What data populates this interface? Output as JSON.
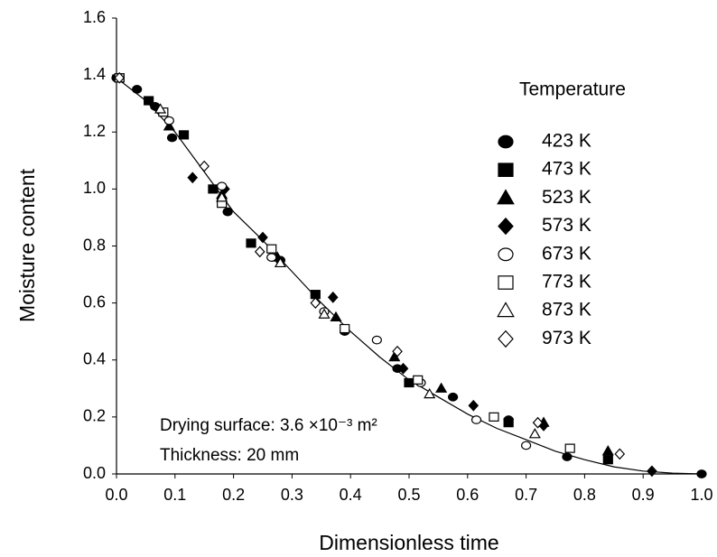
{
  "chart_data": {
    "type": "scatter",
    "x_label": "Dimensionless time",
    "y_label": "Moisture content",
    "legend_title": "Temperature",
    "legend_position": "upper right",
    "annotations": [
      "Drying surface: 3.6 ×10⁻³ m²",
      "Thickness: 20 mm"
    ],
    "xlim": [
      0,
      1
    ],
    "ylim": [
      0,
      1.6
    ],
    "xticks": [
      {
        "value": 0,
        "label": "0.0"
      },
      {
        "value": 0.1,
        "label": "0.1"
      },
      {
        "value": 0.2,
        "label": "0.2"
      },
      {
        "value": 0.3,
        "label": "0.3"
      },
      {
        "value": 0.4,
        "label": "0.4"
      },
      {
        "value": 0.5,
        "label": "0.5"
      },
      {
        "value": 0.6,
        "label": "0.6"
      },
      {
        "value": 0.7,
        "label": "0.7"
      },
      {
        "value": 0.8,
        "label": "0.8"
      },
      {
        "value": 0.9,
        "label": "0.9"
      },
      {
        "value": 1,
        "label": "1.0"
      }
    ],
    "yticks": [
      {
        "value": 0,
        "label": "0.0"
      },
      {
        "value": 0.2,
        "label": "0.2"
      },
      {
        "value": 0.4,
        "label": "0.4"
      },
      {
        "value": 0.6,
        "label": "0.6"
      },
      {
        "value": 0.8,
        "label": "0.8"
      },
      {
        "value": 1,
        "label": "1.0"
      },
      {
        "value": 1.2,
        "label": "1.2"
      },
      {
        "value": 1.4,
        "label": "1.4"
      },
      {
        "value": 1.6,
        "label": "1.6"
      }
    ],
    "curve": {
      "color": "#000000",
      "x": [
        0,
        0.05,
        0.1,
        0.15,
        0.2,
        0.25,
        0.3,
        0.35,
        0.4,
        0.45,
        0.5,
        0.55,
        0.6,
        0.65,
        0.7,
        0.75,
        0.8,
        0.85,
        0.9,
        0.95,
        1
      ],
      "y": [
        1.39,
        1.31,
        1.2,
        1.06,
        0.92,
        0.82,
        0.71,
        0.6,
        0.5,
        0.41,
        0.33,
        0.27,
        0.21,
        0.16,
        0.12,
        0.08,
        0.05,
        0.025,
        0.01,
        0.003,
        0
      ]
    },
    "series": [
      {
        "name": "423 K",
        "marker": "circle",
        "filled": true,
        "color": "#000000",
        "x": [
          0,
          0.035,
          0.066,
          0.095,
          0.19,
          0.28,
          0.39,
          0.48,
          0.575,
          0.67,
          0.77,
          1
        ],
        "values": [
          1.39,
          1.35,
          1.29,
          1.18,
          0.92,
          0.75,
          0.5,
          0.37,
          0.27,
          0.19,
          0.06,
          0
        ]
      },
      {
        "name": "473 K",
        "marker": "square",
        "filled": true,
        "color": "#000000",
        "x": [
          0.005,
          0.055,
          0.115,
          0.165,
          0.23,
          0.34,
          0.5,
          0.67,
          0.84
        ],
        "values": [
          1.39,
          1.31,
          1.19,
          1.0,
          0.81,
          0.63,
          0.32,
          0.18,
          0.05
        ]
      },
      {
        "name": "523 K",
        "marker": "triangle",
        "filled": true,
        "color": "#000000",
        "x": [
          0.09,
          0.18,
          0.275,
          0.375,
          0.475,
          0.555,
          0.73,
          0.84
        ],
        "values": [
          1.22,
          0.98,
          0.76,
          0.55,
          0.41,
          0.3,
          0.18,
          0.08
        ]
      },
      {
        "name": "573 K",
        "marker": "diamond",
        "filled": true,
        "color": "#000000",
        "x": [
          0.13,
          0.185,
          0.25,
          0.37,
          0.49,
          0.61,
          0.73,
          0.915
        ],
        "values": [
          1.04,
          1.0,
          0.83,
          0.62,
          0.37,
          0.24,
          0.17,
          0.01
        ]
      },
      {
        "name": "673 K",
        "marker": "circle",
        "filled": false,
        "color": "#000000",
        "x": [
          0.09,
          0.18,
          0.265,
          0.355,
          0.445,
          0.52,
          0.615,
          0.7
        ],
        "values": [
          1.24,
          1.01,
          0.76,
          0.57,
          0.47,
          0.32,
          0.19,
          0.1
        ]
      },
      {
        "name": "773 K",
        "marker": "square",
        "filled": false,
        "color": "#000000",
        "x": [
          0.005,
          0.08,
          0.18,
          0.265,
          0.39,
          0.515,
          0.645,
          0.775
        ],
        "values": [
          1.39,
          1.27,
          0.95,
          0.79,
          0.51,
          0.33,
          0.2,
          0.09
        ]
      },
      {
        "name": "873 K",
        "marker": "triangle",
        "filled": false,
        "color": "#000000",
        "x": [
          0.075,
          0.18,
          0.28,
          0.355,
          0.535,
          0.715
        ],
        "values": [
          1.28,
          0.97,
          0.74,
          0.56,
          0.28,
          0.14
        ]
      },
      {
        "name": "973 K",
        "marker": "diamond",
        "filled": false,
        "color": "#000000",
        "x": [
          0.005,
          0.15,
          0.245,
          0.34,
          0.48,
          0.72,
          0.86
        ],
        "values": [
          1.39,
          1.08,
          0.78,
          0.6,
          0.43,
          0.18,
          0.07
        ]
      }
    ]
  }
}
